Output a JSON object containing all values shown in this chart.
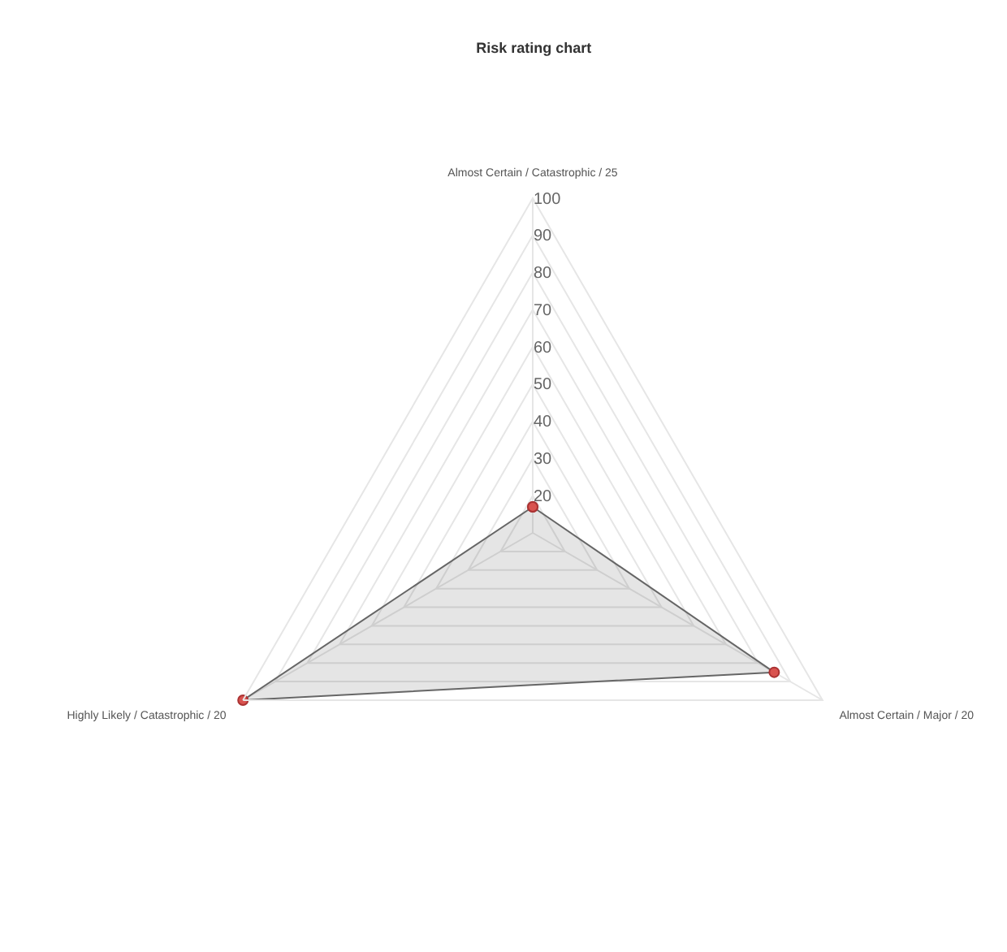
{
  "chart_data": {
    "type": "radar",
    "title": "Risk rating chart",
    "categories": [
      "Almost Certain / Catastrophic / 25",
      "Almost Certain / Major / 20",
      "Highly Likely / Catastrophic / 20"
    ],
    "series": [
      {
        "color": "#666666",
        "values": [
          17,
          85,
          100
        ]
      }
    ],
    "ylim": [
      10,
      100
    ],
    "yticks": [
      20,
      30,
      40,
      50,
      60,
      70,
      80,
      90,
      100
    ],
    "grid": true,
    "marker": "circle",
    "line_style": "solid"
  }
}
